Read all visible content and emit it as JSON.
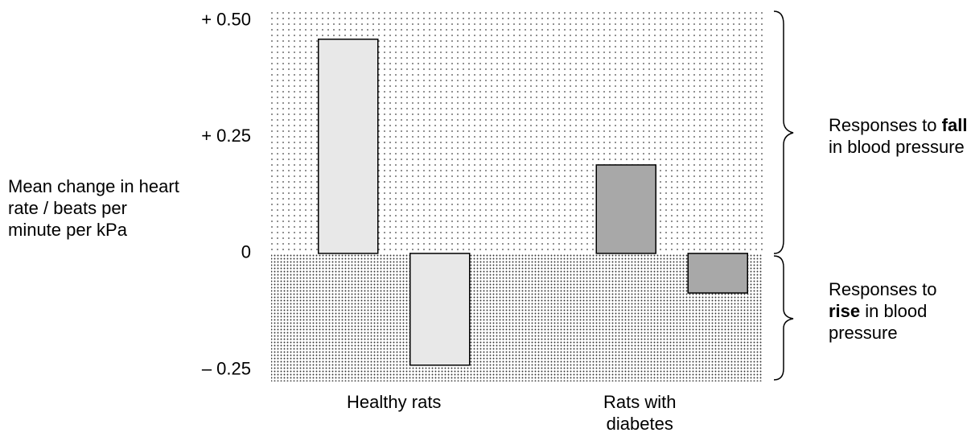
{
  "chart_data": {
    "type": "bar",
    "y_label": "Mean change in heart rate / beats per minute per kPa",
    "categories": [
      "Healthy rats",
      "Rats with diabetes"
    ],
    "category_colors": [
      "#e8e8e8",
      "#a8a8a8"
    ],
    "series": [
      {
        "values": [
          0.46,
          0.19
        ]
      },
      {
        "values": [
          -0.24,
          -0.085
        ]
      }
    ],
    "ylim": [
      -0.275,
      0.52
    ],
    "yticks": [
      {
        "value": -0.25,
        "label": "– 0.25"
      },
      0,
      {
        "value": 0.25,
        "label": "+ 0.25"
      },
      {
        "value": 0.5,
        "label": "+ 0.50"
      }
    ],
    "annotations": [
      {
        "prefix": "Responses to",
        "emphasis": "fall",
        "suffix": "in blood pressure"
      },
      {
        "prefix": "Responses to",
        "emphasis": "rise",
        "suffix": "in blood pressure"
      }
    ]
  }
}
